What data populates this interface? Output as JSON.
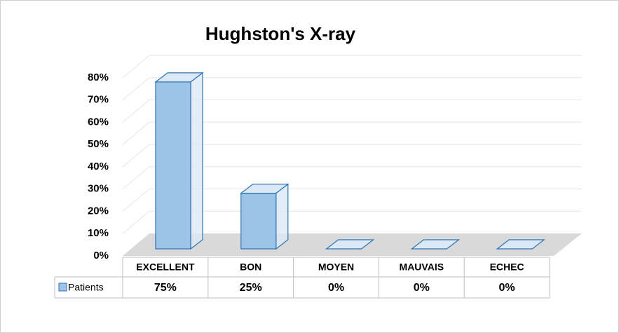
{
  "chart_data": {
    "type": "bar3d",
    "title": "Hughston's X-ray",
    "categories": [
      "EXCELLENT",
      "BON",
      "MOYEN",
      "MAUVAIS",
      "ECHEC"
    ],
    "series": [
      {
        "name": "Patients",
        "color": "#9dc3e6",
        "values": [
          75,
          25,
          0,
          0,
          0
        ],
        "value_labels": [
          "75%",
          "25%",
          "0%",
          "0%",
          "0%"
        ]
      }
    ],
    "ylim": [
      0,
      80
    ],
    "yticks": [
      {
        "value": 0,
        "label": "0%"
      },
      {
        "value": 10,
        "label": "10%"
      },
      {
        "value": 20,
        "label": "20%"
      },
      {
        "value": 30,
        "label": "30%"
      },
      {
        "value": 40,
        "label": "40%"
      },
      {
        "value": 50,
        "label": "50%"
      },
      {
        "value": 60,
        "label": "60%"
      },
      {
        "value": 70,
        "label": "70%"
      },
      {
        "value": 80,
        "label": "80%"
      }
    ],
    "grid": true
  }
}
